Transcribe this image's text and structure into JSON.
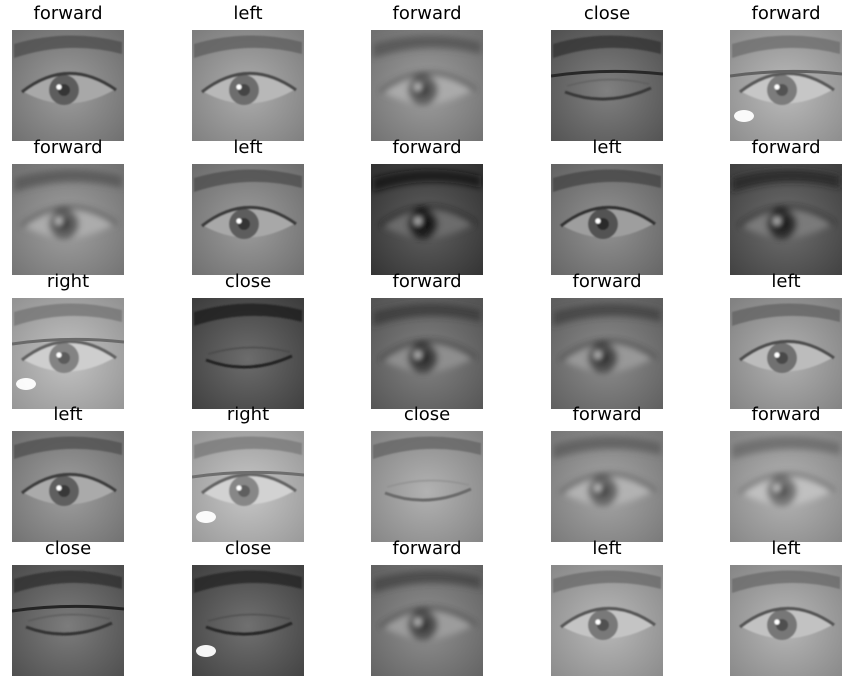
{
  "grid": {
    "rows": [
      [
        {
          "label": "forward",
          "kind": "open-eye",
          "tone": "#8a8a8a",
          "glasses": false,
          "glare": false
        },
        {
          "label": "left",
          "kind": "open-eye",
          "tone": "#9a9a9a",
          "glasses": false,
          "glare": false
        },
        {
          "label": "forward",
          "kind": "blurry-eye",
          "tone": "#8c8c8c",
          "glasses": false,
          "glare": false
        },
        {
          "label": "close",
          "kind": "closed-eye",
          "tone": "#6e6e6e",
          "glasses": true,
          "glare": false
        },
        {
          "label": "forward",
          "kind": "open-eye",
          "tone": "#a8a8a8",
          "glasses": true,
          "glare": true
        }
      ],
      [
        {
          "label": "forward",
          "kind": "blurry-eye",
          "tone": "#8e8e8e",
          "glasses": false,
          "glare": false
        },
        {
          "label": "left",
          "kind": "open-eye",
          "tone": "#8a8a8a",
          "glasses": false,
          "glare": false
        },
        {
          "label": "forward",
          "kind": "blurry-eye",
          "tone": "#4e4e4e",
          "glasses": false,
          "glare": false
        },
        {
          "label": "left",
          "kind": "open-eye",
          "tone": "#808080",
          "glasses": false,
          "glare": false
        },
        {
          "label": "forward",
          "kind": "blurry-eye",
          "tone": "#5c5c5c",
          "glasses": false,
          "glare": false
        }
      ],
      [
        {
          "label": "right",
          "kind": "open-eye",
          "tone": "#b0b0b0",
          "glasses": true,
          "glare": true
        },
        {
          "label": "close",
          "kind": "closed-eye",
          "tone": "#5a5a5a",
          "glasses": false,
          "glare": false
        },
        {
          "label": "forward",
          "kind": "blurry-eye",
          "tone": "#707070",
          "glasses": false,
          "glare": false
        },
        {
          "label": "forward",
          "kind": "blurry-eye",
          "tone": "#7a7a7a",
          "glasses": false,
          "glare": false
        },
        {
          "label": "left",
          "kind": "open-eye",
          "tone": "#9e9e9e",
          "glasses": false,
          "glare": false
        }
      ],
      [
        {
          "label": "left",
          "kind": "open-eye",
          "tone": "#8c8c8c",
          "glasses": false,
          "glare": false
        },
        {
          "label": "right",
          "kind": "open-eye",
          "tone": "#b4b4b4",
          "glasses": true,
          "glare": true
        },
        {
          "label": "close",
          "kind": "closed-eye",
          "tone": "#a0a0a0",
          "glasses": false,
          "glare": false
        },
        {
          "label": "forward",
          "kind": "blurry-eye",
          "tone": "#949494",
          "glasses": false,
          "glare": false
        },
        {
          "label": "forward",
          "kind": "blurry-eye",
          "tone": "#a2a2a2",
          "glasses": false,
          "glare": false
        }
      ],
      [
        {
          "label": "close",
          "kind": "closed-eye",
          "tone": "#6a6a6a",
          "glasses": true,
          "glare": false
        },
        {
          "label": "close",
          "kind": "closed-eye",
          "tone": "#5e5e5e",
          "glasses": false,
          "glare": true
        },
        {
          "label": "forward",
          "kind": "blurry-eye",
          "tone": "#7e7e7e",
          "glasses": false,
          "glare": false
        },
        {
          "label": "left",
          "kind": "open-eye",
          "tone": "#a6a6a6",
          "glasses": false,
          "glare": false
        },
        {
          "label": "left",
          "kind": "open-eye",
          "tone": "#a4a4a4",
          "glasses": false,
          "glare": false
        }
      ]
    ]
  }
}
